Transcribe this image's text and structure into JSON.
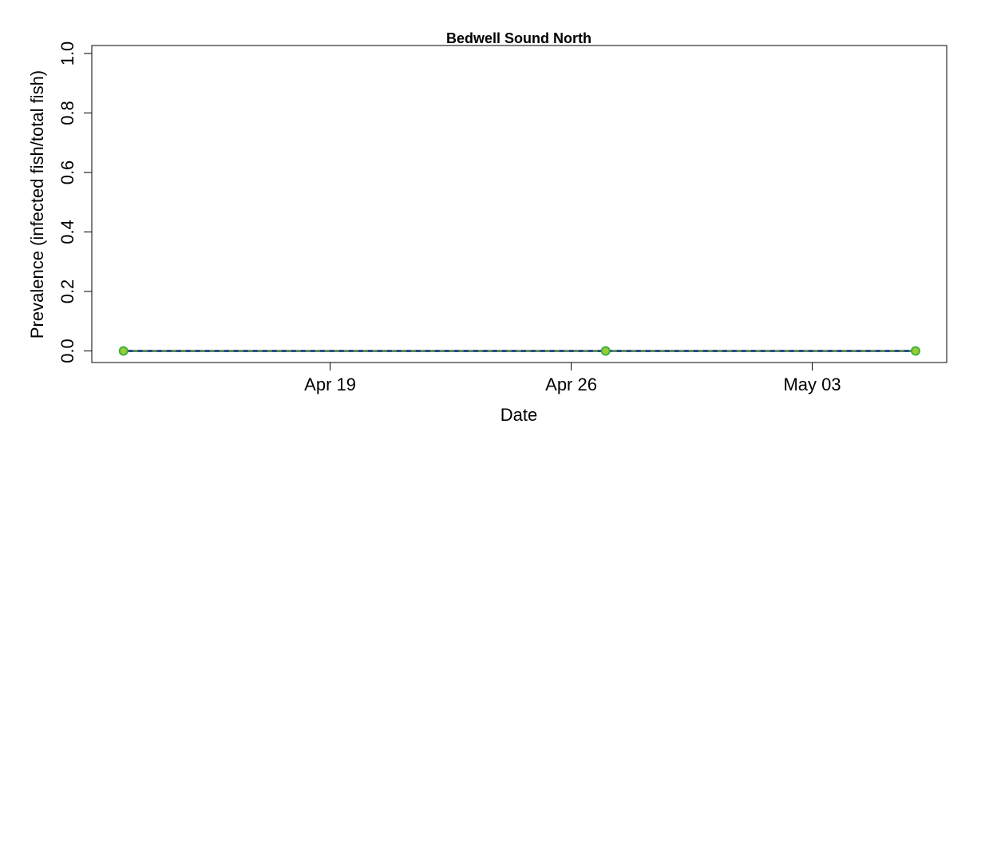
{
  "chart_data": {
    "type": "line",
    "title": "Bedwell Sound North",
    "xlabel": "Date",
    "ylabel": "Prevalence (infected fish/total fish)",
    "x_tick_labels": [
      {
        "label": "Apr 19",
        "date": "2000-04-19"
      },
      {
        "label": "Apr 26",
        "date": "2000-04-26"
      },
      {
        "label": "May 03",
        "date": "2000-05-03"
      }
    ],
    "y_tick_labels": [
      "0.0",
      "0.2",
      "0.4",
      "0.6",
      "0.8",
      "1.0"
    ],
    "y_ticks": [
      0,
      0.2,
      0.4,
      0.6,
      0.7999999999999999,
      1
    ],
    "ylim": [
      0,
      1
    ],
    "xlim": [
      "2000-04-12",
      "2000-05-07"
    ],
    "grid": false,
    "series": [
      {
        "x": [
          "2000-04-13",
          "2000-04-27",
          "2000-05-06"
        ],
        "y": [
          0,
          0,
          0
        ]
      }
    ],
    "colors": {
      "line_outer": "#2b4f8a",
      "line_inner": "#9acd32",
      "point_fill": "#9acd32",
      "point_edge": "#3cb043"
    }
  }
}
